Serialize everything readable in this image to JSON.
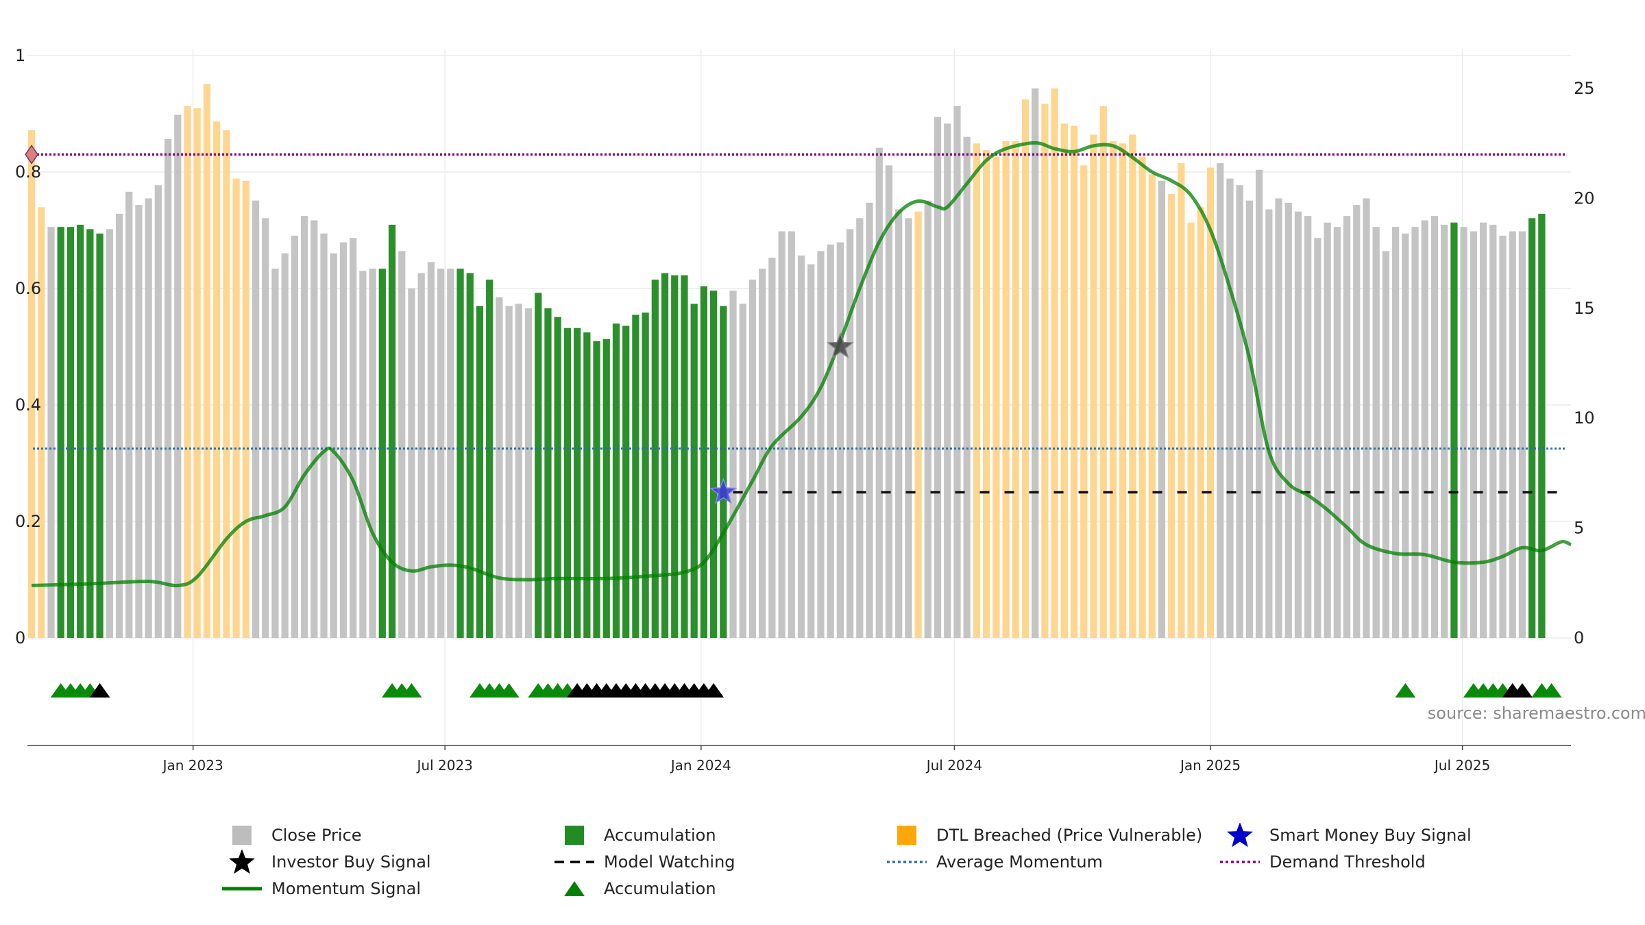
{
  "chart_data": {
    "type": "bar",
    "title": "",
    "xlabel": "",
    "ylabel": "",
    "left_axis": {
      "range": [
        0,
        1
      ],
      "ticks": [
        "0",
        "0.2",
        "0.4",
        "0.6",
        "0.8",
        "1"
      ]
    },
    "right_axis": {
      "range": [
        0,
        26.5
      ],
      "ticks": [
        "0",
        "5",
        "10",
        "15",
        "20",
        "25"
      ]
    },
    "x_range": [
      "2022-09-04",
      "2025-09-17"
    ],
    "x_ticks": [
      {
        "date": "2023-01-01",
        "label": "Jan 2023"
      },
      {
        "date": "2023-07-01",
        "label": "Jul 2023"
      },
      {
        "date": "2024-01-01",
        "label": "Jan 2024"
      },
      {
        "date": "2024-07-01",
        "label": "Jul 2024"
      },
      {
        "date": "2025-01-01",
        "label": "Jan 2025"
      },
      {
        "date": "2025-07-01",
        "label": "Jul 2025"
      }
    ],
    "bar_series": {
      "name": "Close Price",
      "start_date": "2022-09-07",
      "interval_days": 7,
      "values": [
        23.1,
        19.6,
        18.7,
        18.7,
        18.7,
        18.8,
        18.6,
        18.4,
        18.6,
        19.3,
        20.3,
        19.7,
        20.0,
        20.6,
        22.7,
        23.8,
        24.2,
        24.1,
        25.2,
        23.5,
        23.1,
        20.9,
        20.8,
        19.9,
        19.1,
        16.8,
        17.5,
        18.3,
        19.2,
        19.0,
        18.4,
        17.5,
        18.0,
        18.2,
        16.7,
        16.8,
        16.8,
        18.8,
        17.6,
        15.9,
        16.6,
        17.1,
        16.8,
        16.8,
        16.8,
        16.6,
        15.1,
        16.3,
        15.5,
        15.1,
        15.2,
        15.0,
        15.7,
        15.0,
        14.6,
        14.1,
        14.1,
        13.9,
        13.5,
        13.6,
        14.3,
        14.2,
        14.7,
        14.8,
        16.3,
        16.6,
        16.5,
        16.5,
        15.2,
        16.0,
        15.8,
        15.1,
        15.8,
        15.2,
        16.3,
        16.8,
        17.3,
        18.5,
        18.5,
        17.4,
        17.0,
        17.6,
        17.9,
        18.0,
        18.6,
        19.1,
        19.8,
        22.3,
        21.5,
        19.5,
        19.1,
        19.4,
        19.9,
        23.7,
        23.4,
        24.2,
        22.8,
        22.5,
        22.2,
        21.9,
        22.6,
        22.6,
        24.5,
        25.0,
        24.3,
        25.0,
        23.4,
        23.3,
        21.5,
        22.9,
        24.2,
        22.6,
        22.5,
        22.9,
        21.9,
        21.1,
        20.8,
        20.2,
        21.6,
        18.9,
        19.6,
        21.4,
        21.6,
        20.9,
        20.6,
        19.9,
        21.3,
        19.5,
        20.0,
        19.8,
        19.4,
        19.2,
        18.2,
        18.9,
        18.7,
        19.2,
        19.7,
        20.0,
        18.7,
        17.6,
        18.7,
        18.4,
        18.7,
        19.0,
        19.2,
        18.8,
        18.9,
        18.7,
        18.5,
        18.9,
        18.8,
        18.3,
        18.5,
        18.5,
        19.1,
        19.3
      ],
      "states": "DDGAAAAAGGGGGGGGDDDDDDDGGGGGGGGGGGGGAAGGGGGGAAAAGGGGAAAAAAAAAAAAAAAAAAAAGGGGGGGGGGGGGGGGGGGDGGGGGDDDDDDGDDDDDDDDDDDDGDDDDDGGGGGGGGGGGGGGGGGGGGGGGGAGGGGGGGAAAAAAGAAGG",
      "state_key": {
        "G": "Close Price",
        "A": "Accumulation",
        "D": "DTL Breached (Price Vulnerable)"
      }
    },
    "momentum_signal": {
      "name": "Momentum Signal",
      "axis": "left",
      "points": [
        [
          "2022-09-07",
          0.09
        ],
        [
          "2022-10-19",
          0.093
        ],
        [
          "2022-11-30",
          0.097
        ],
        [
          "2022-12-21",
          0.09
        ],
        [
          "2023-01-04",
          0.105
        ],
        [
          "2023-01-25",
          0.17
        ],
        [
          "2023-02-08",
          0.2
        ],
        [
          "2023-02-22",
          0.21
        ],
        [
          "2023-03-08",
          0.225
        ],
        [
          "2023-03-22",
          0.28
        ],
        [
          "2023-04-05",
          0.32
        ],
        [
          "2023-04-12",
          0.32
        ],
        [
          "2023-04-26",
          0.27
        ],
        [
          "2023-05-10",
          0.18
        ],
        [
          "2023-05-24",
          0.13
        ],
        [
          "2023-06-07",
          0.115
        ],
        [
          "2023-06-21",
          0.122
        ],
        [
          "2023-07-05",
          0.125
        ],
        [
          "2023-07-19",
          0.12
        ],
        [
          "2023-08-09",
          0.103
        ],
        [
          "2023-08-30",
          0.1
        ],
        [
          "2023-09-20",
          0.102
        ],
        [
          "2023-10-25",
          0.102
        ],
        [
          "2023-11-29",
          0.107
        ],
        [
          "2023-12-20",
          0.113
        ],
        [
          "2024-01-03",
          0.13
        ],
        [
          "2024-01-17",
          0.18
        ],
        [
          "2024-02-07",
          0.27
        ],
        [
          "2024-02-21",
          0.33
        ],
        [
          "2024-03-13",
          0.38
        ],
        [
          "2024-03-27",
          0.43
        ],
        [
          "2024-04-10",
          0.51
        ],
        [
          "2024-04-24",
          0.6
        ],
        [
          "2024-05-08",
          0.68
        ],
        [
          "2024-05-22",
          0.73
        ],
        [
          "2024-06-05",
          0.75
        ],
        [
          "2024-06-19",
          0.74
        ],
        [
          "2024-06-26",
          0.74
        ],
        [
          "2024-07-10",
          0.78
        ],
        [
          "2024-07-24",
          0.82
        ],
        [
          "2024-08-07",
          0.84
        ],
        [
          "2024-08-28",
          0.85
        ],
        [
          "2024-09-11",
          0.84
        ],
        [
          "2024-09-25",
          0.835
        ],
        [
          "2024-10-09",
          0.845
        ],
        [
          "2024-10-23",
          0.845
        ],
        [
          "2024-11-06",
          0.825
        ],
        [
          "2024-11-20",
          0.8
        ],
        [
          "2024-12-04",
          0.785
        ],
        [
          "2024-12-18",
          0.76
        ],
        [
          "2025-01-01",
          0.7
        ],
        [
          "2025-01-15",
          0.6
        ],
        [
          "2025-01-29",
          0.48
        ],
        [
          "2025-02-12",
          0.32
        ],
        [
          "2025-02-26",
          0.265
        ],
        [
          "2025-03-12",
          0.245
        ],
        [
          "2025-03-26",
          0.22
        ],
        [
          "2025-04-09",
          0.19
        ],
        [
          "2025-04-23",
          0.16
        ],
        [
          "2025-05-14",
          0.145
        ],
        [
          "2025-06-04",
          0.143
        ],
        [
          "2025-06-25",
          0.13
        ],
        [
          "2025-07-16",
          0.13
        ],
        [
          "2025-07-30",
          0.14
        ],
        [
          "2025-08-13",
          0.155
        ],
        [
          "2025-08-27",
          0.15
        ],
        [
          "2025-09-10",
          0.165
        ],
        [
          "2025-09-17",
          0.16
        ]
      ]
    },
    "model_watching": {
      "name": "Model Watching",
      "axis": "left",
      "value": 0.25,
      "from": "2024-01-24",
      "to": "2025-09-17"
    },
    "average_momentum": {
      "name": "Average Momentum",
      "axis": "left",
      "value": 0.325
    },
    "demand_threshold": {
      "name": "Demand Threshold",
      "axis": "left",
      "value": 0.83
    },
    "investor_buy_signal": {
      "name": "Investor Buy Signal",
      "points": [
        [
          "2024-04-10",
          0.5
        ]
      ]
    },
    "smart_money_buy_signal": {
      "name": "Smart Money Buy Signal",
      "points": [
        [
          "2024-01-17",
          0.25
        ]
      ]
    },
    "marker_start": {
      "date": "2022-09-07",
      "value": 0.83
    },
    "accumulation_triangles": {
      "name": "Accumulation",
      "green": [
        "2022-09-28",
        "2022-10-05",
        "2022-10-12",
        "2022-10-19",
        "2023-05-24",
        "2023-05-31",
        "2023-06-07",
        "2023-07-26",
        "2023-08-02",
        "2023-08-09",
        "2023-08-16",
        "2023-09-06",
        "2023-09-13",
        "2023-09-20",
        "2023-09-27",
        "2025-05-21",
        "2025-07-09",
        "2025-07-16",
        "2025-07-23",
        "2025-07-30",
        "2025-08-27",
        "2025-09-03"
      ],
      "black": [
        "2022-10-26",
        "2023-10-04",
        "2023-10-11",
        "2023-10-18",
        "2023-10-25",
        "2023-11-01",
        "2023-11-08",
        "2023-11-15",
        "2023-11-22",
        "2023-11-29",
        "2023-12-06",
        "2023-12-13",
        "2023-12-20",
        "2023-12-27",
        "2024-01-03",
        "2024-01-10",
        "2025-08-06",
        "2025-08-13"
      ]
    },
    "annotation": "source: sharemaestro.com",
    "legend": [
      {
        "symbol": "square-gray",
        "label": "Close Price",
        "color": "#bdbdbd"
      },
      {
        "symbol": "square-green",
        "label": "Accumulation",
        "color": "#238b23"
      },
      {
        "symbol": "square-orange",
        "label": "DTL Breached (Price Vulnerable)",
        "color": "#ffa60a"
      },
      {
        "symbol": "star-blue",
        "label": "Smart Money Buy Signal",
        "color": "#0000cc"
      },
      {
        "symbol": "star-black",
        "label": "Investor Buy Signal",
        "color": "#000000"
      },
      {
        "symbol": "dash-black",
        "label": "Model Watching",
        "color": "#000000"
      },
      {
        "symbol": "dot-blue",
        "label": "Average Momentum",
        "color": "#2f6f9f"
      },
      {
        "symbol": "dot-purple",
        "label": "Demand Threshold",
        "color": "#800080"
      },
      {
        "symbol": "line-green",
        "label": "Momentum Signal",
        "color": "#008000"
      },
      {
        "symbol": "triangle-green",
        "label": "Accumulation",
        "color": "#008000"
      }
    ],
    "legend_placement": "bottom",
    "grid": true,
    "colors": {
      "close": "#c4c4c4",
      "accumulation": "#2b8f2b",
      "dtl": "#ffd690",
      "momentum": "#008000",
      "average": "#2f6f9f",
      "threshold": "#800080",
      "smart_money": "#3a3ad6",
      "investor": "#444444"
    }
  }
}
